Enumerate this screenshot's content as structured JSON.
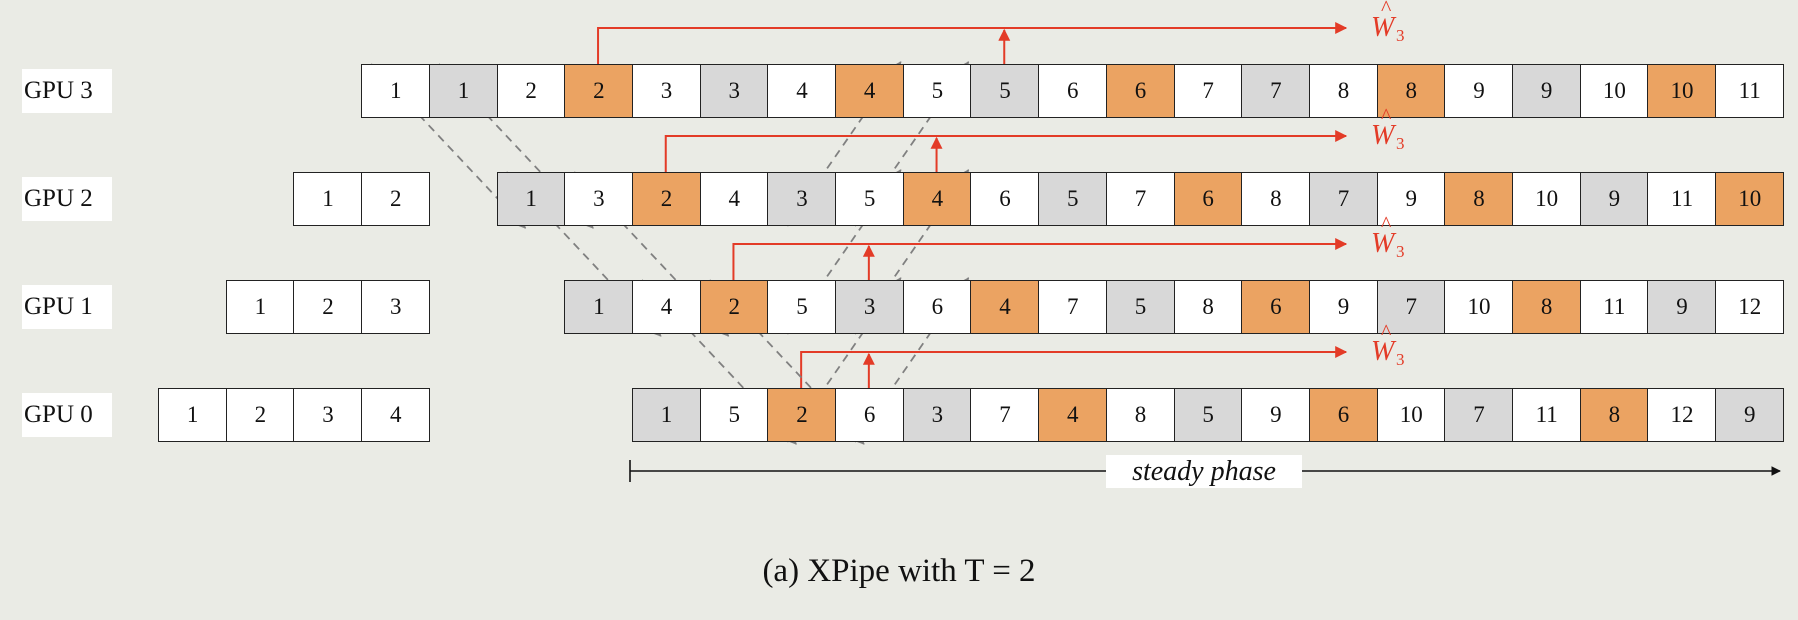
{
  "gpus": [
    {
      "label": "GPU 3",
      "warmup": [],
      "steady_start": 9,
      "steady": [
        [
          "1",
          "w"
        ],
        [
          "1",
          "f"
        ],
        [
          "2",
          "w"
        ],
        [
          "2",
          "b"
        ],
        [
          "3",
          "w"
        ],
        [
          "3",
          "f"
        ],
        [
          "4",
          "w"
        ],
        [
          "4",
          "b"
        ],
        [
          "5",
          "w"
        ],
        [
          "5",
          "f"
        ],
        [
          "6",
          "w"
        ],
        [
          "6",
          "b"
        ],
        [
          "7",
          "w"
        ],
        [
          "7",
          "f"
        ],
        [
          "8",
          "w"
        ],
        [
          "8",
          "b"
        ],
        [
          "9",
          "w"
        ],
        [
          "9",
          "f"
        ],
        [
          "10",
          "w"
        ],
        [
          "10",
          "b"
        ],
        [
          "11",
          "w"
        ]
      ]
    },
    {
      "label": "GPU 2",
      "warmup": [
        "1",
        "2"
      ],
      "warmup_start": 8,
      "steady_start": 11,
      "steady": [
        [
          "1",
          "f"
        ],
        [
          "3",
          "w"
        ],
        [
          "2",
          "b"
        ],
        [
          "4",
          "w"
        ],
        [
          "3",
          "f"
        ],
        [
          "5",
          "w"
        ],
        [
          "4",
          "b"
        ],
        [
          "6",
          "w"
        ],
        [
          "5",
          "f"
        ],
        [
          "7",
          "w"
        ],
        [
          "6",
          "b"
        ],
        [
          "8",
          "w"
        ],
        [
          "7",
          "f"
        ],
        [
          "9",
          "w"
        ],
        [
          "8",
          "b"
        ],
        [
          "10",
          "w"
        ],
        [
          "9",
          "f"
        ],
        [
          "11",
          "w"
        ],
        [
          "10",
          "b"
        ]
      ]
    },
    {
      "label": "GPU 1",
      "warmup": [
        "1",
        "2",
        "3"
      ],
      "warmup_start": 7,
      "steady_start": 12,
      "steady": [
        [
          "1",
          "f"
        ],
        [
          "4",
          "w"
        ],
        [
          "2",
          "b"
        ],
        [
          "5",
          "w"
        ],
        [
          "3",
          "f"
        ],
        [
          "6",
          "w"
        ],
        [
          "4",
          "b"
        ],
        [
          "7",
          "w"
        ],
        [
          "5",
          "f"
        ],
        [
          "8",
          "w"
        ],
        [
          "6",
          "b"
        ],
        [
          "9",
          "w"
        ],
        [
          "7",
          "f"
        ],
        [
          "10",
          "w"
        ],
        [
          "8",
          "b"
        ],
        [
          "11",
          "w"
        ],
        [
          "9",
          "f"
        ],
        [
          "12",
          "w"
        ]
      ]
    },
    {
      "label": "GPU 0",
      "warmup": [
        "1",
        "2",
        "3",
        "4"
      ],
      "warmup_start": 6,
      "steady_start": 13,
      "steady": [
        [
          "1",
          "f"
        ],
        [
          "5",
          "w"
        ],
        [
          "2",
          "b"
        ],
        [
          "6",
          "w"
        ],
        [
          "3",
          "f"
        ],
        [
          "7",
          "w"
        ],
        [
          "4",
          "b"
        ],
        [
          "8",
          "w"
        ],
        [
          "5",
          "f"
        ],
        [
          "9",
          "w"
        ],
        [
          "6",
          "b"
        ],
        [
          "10",
          "w"
        ],
        [
          "7",
          "f"
        ],
        [
          "11",
          "w"
        ],
        [
          "8",
          "b"
        ],
        [
          "12",
          "w"
        ],
        [
          "9",
          "f"
        ]
      ]
    }
  ],
  "weight_label": {
    "letter": "W",
    "hat": "^",
    "subscript": "3"
  },
  "phase_label": "steady phase",
  "caption": "(a)  XPipe with T = 2",
  "colors": {
    "forward": "#ffffff",
    "backward_gray": "#d8d8d8",
    "backward_orange": "#eba362",
    "red": "#e33b27",
    "dash": "#808080"
  }
}
